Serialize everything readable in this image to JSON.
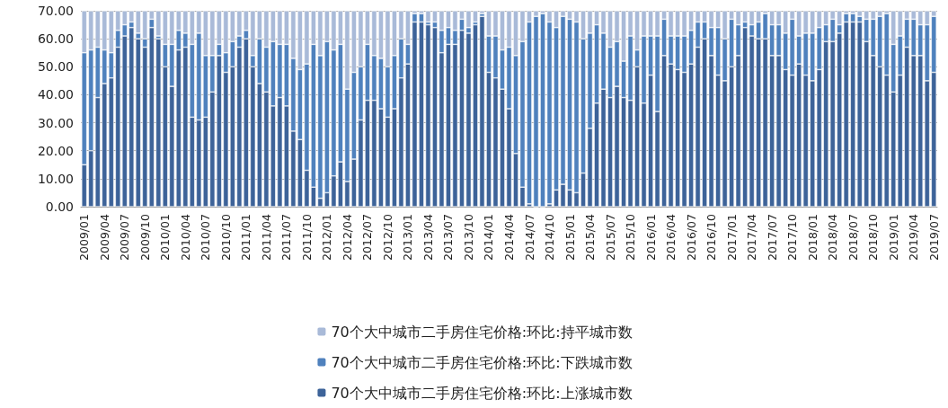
{
  "chart_data": {
    "type": "bar",
    "stacked": true,
    "grid": "y",
    "legend": "bottom",
    "categories": [
      "2009/01",
      null,
      null,
      "2009/04",
      null,
      null,
      "2009/07",
      null,
      null,
      "2009/10",
      null,
      null,
      "2010/01",
      null,
      null,
      "2010/04",
      null,
      null,
      "2010/07",
      null,
      null,
      "2010/10",
      null,
      null,
      "2011/01",
      null,
      null,
      "2011/04",
      null,
      null,
      "2011/07",
      null,
      null,
      "2011/10",
      null,
      null,
      "2012/01",
      null,
      null,
      "2012/04",
      null,
      null,
      "2012/07",
      null,
      null,
      "2012/10",
      null,
      null,
      "2013/01",
      null,
      null,
      "2013/04",
      null,
      null,
      "2013/07",
      null,
      null,
      "2013/10",
      null,
      null,
      "2014/01",
      null,
      null,
      "2014/04",
      null,
      null,
      "2014/07",
      null,
      null,
      "2014/10",
      null,
      null,
      "2015/01",
      null,
      null,
      "2015/04",
      null,
      null,
      "2015/07",
      null,
      null,
      "2015/10",
      null,
      null,
      "2016/01",
      null,
      null,
      "2016/04",
      null,
      null,
      "2016/07",
      null,
      null,
      "2016/10",
      null,
      null,
      "2017/01",
      null,
      null,
      "2017/04",
      null,
      null,
      "2017/07",
      null,
      null,
      "2017/10",
      null,
      null,
      "2018/01",
      null,
      null,
      "2018/04",
      null,
      null,
      "2018/07",
      null,
      null,
      "2018/10",
      null,
      null,
      "2019/01",
      null,
      null,
      "2019/04",
      null,
      null,
      "2019/07"
    ],
    "ylim": [
      0,
      70
    ],
    "yticks": [
      {
        "value": 0,
        "label": "0.00"
      },
      {
        "value": 10,
        "label": "10.00"
      },
      {
        "value": 20,
        "label": "20.00"
      },
      {
        "value": 30,
        "label": "30.00"
      },
      {
        "value": 40,
        "label": "40.00"
      },
      {
        "value": 50,
        "label": "50.00"
      },
      {
        "value": 60,
        "label": "60.00"
      },
      {
        "value": 70,
        "label": "70.00"
      }
    ],
    "series": [
      {
        "name": "70个大中城市二手房住宅价格:环比:上涨城市数",
        "color": "#3d6399",
        "values": [
          15,
          20,
          39,
          44,
          46,
          57,
          61,
          64,
          60,
          57,
          64,
          60,
          50,
          43,
          56,
          57,
          32,
          31,
          32,
          41,
          54,
          48,
          50,
          57,
          60,
          50,
          44,
          41,
          36,
          39,
          36,
          27,
          24,
          13,
          7,
          3,
          5,
          11,
          16,
          9,
          17,
          31,
          38,
          38,
          35,
          32,
          35,
          46,
          51,
          66,
          66,
          65,
          64,
          55,
          58,
          58,
          63,
          62,
          65,
          68,
          48,
          46,
          42,
          35,
          19,
          7,
          1,
          0,
          0,
          1,
          6,
          8,
          6,
          5,
          12,
          28,
          37,
          42,
          39,
          43,
          39,
          38,
          50,
          37,
          47,
          34,
          54,
          51,
          49,
          48,
          51,
          57,
          60,
          54,
          47,
          45,
          50,
          54,
          64,
          61,
          60,
          60,
          54,
          54,
          49,
          47,
          51,
          47,
          45,
          49,
          59,
          59,
          62,
          66,
          66,
          66,
          59,
          54,
          50,
          47,
          41,
          47,
          57,
          54,
          54,
          45,
          48
        ]
      },
      {
        "name": "70个大中城市二手房住宅价格:环比:下跌城市数",
        "color": "#4f81bd",
        "values": [
          40,
          36,
          18,
          12,
          9,
          6,
          4,
          2,
          2,
          3,
          3,
          1,
          8,
          15,
          7,
          5,
          26,
          31,
          22,
          13,
          4,
          7,
          9,
          4,
          3,
          4,
          16,
          16,
          23,
          19,
          22,
          26,
          25,
          38,
          51,
          51,
          54,
          45,
          42,
          33,
          31,
          19,
          20,
          16,
          18,
          18,
          19,
          14,
          7,
          3,
          3,
          1,
          2,
          8,
          6,
          5,
          4,
          2,
          1,
          1,
          13,
          15,
          14,
          22,
          35,
          52,
          65,
          68,
          69,
          65,
          58,
          60,
          61,
          61,
          48,
          34,
          28,
          20,
          18,
          16,
          13,
          23,
          6,
          24,
          14,
          27,
          13,
          10,
          12,
          13,
          12,
          9,
          6,
          10,
          17,
          15,
          17,
          11,
          2,
          4,
          6,
          9,
          11,
          11,
          13,
          20,
          10,
          15,
          17,
          15,
          6,
          8,
          3,
          3,
          3,
          2,
          8,
          13,
          18,
          22,
          17,
          14,
          10,
          13,
          11,
          20,
          20
        ]
      },
      {
        "name": "70个大中城市二手房住宅价格:环比:持平城市数",
        "color": "#a9bad8",
        "values": [
          15,
          14,
          13,
          14,
          15,
          7,
          5,
          4,
          8,
          10,
          3,
          9,
          12,
          12,
          7,
          8,
          12,
          8,
          16,
          16,
          12,
          15,
          11,
          9,
          7,
          16,
          10,
          13,
          11,
          12,
          12,
          17,
          21,
          19,
          12,
          16,
          11,
          14,
          12,
          28,
          22,
          20,
          12,
          16,
          17,
          20,
          16,
          10,
          12,
          1,
          1,
          4,
          4,
          7,
          6,
          7,
          3,
          6,
          4,
          1,
          9,
          9,
          14,
          13,
          16,
          11,
          4,
          2,
          1,
          4,
          6,
          2,
          3,
          4,
          10,
          8,
          5,
          8,
          13,
          11,
          18,
          9,
          14,
          9,
          9,
          9,
          3,
          9,
          9,
          9,
          7,
          4,
          4,
          6,
          6,
          10,
          3,
          5,
          4,
          5,
          4,
          1,
          5,
          5,
          8,
          3,
          9,
          8,
          8,
          6,
          5,
          3,
          5,
          1,
          1,
          2,
          3,
          3,
          2,
          1,
          12,
          9,
          3,
          3,
          5,
          5,
          2
        ]
      }
    ]
  }
}
